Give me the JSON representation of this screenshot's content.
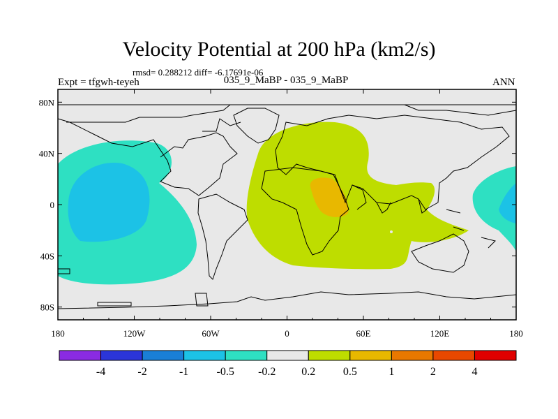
{
  "chart_data": {
    "type": "contour-map",
    "title": "Velocity Potential at 200 hPa (km2/s)",
    "stats": "rmsd= 0.288212 diff= -6.17691e-06",
    "experiment": "Expt = tfgwh-teyeh",
    "cases": "035_9_MaBP - 035_9_MaBP",
    "season": "ANN",
    "xlabel": "",
    "ylabel": "",
    "xlim": [
      -180,
      180
    ],
    "ylim": [
      -90,
      90
    ],
    "x_ticks": [
      -180,
      -120,
      -60,
      0,
      60,
      120,
      180
    ],
    "x_tick_labels": [
      "180",
      "120W",
      "60W",
      "0",
      "60E",
      "120E",
      "180"
    ],
    "y_ticks": [
      80,
      40,
      0,
      -40,
      -80
    ],
    "y_tick_labels": [
      "80N",
      "40N",
      "0",
      "40S",
      "80S"
    ],
    "colorbar": {
      "levels": [
        -4,
        -2,
        -1,
        -0.5,
        -0.2,
        0.2,
        0.5,
        1,
        2,
        4
      ],
      "labels": [
        "-4",
        "-2",
        "-1",
        "-0.5",
        "-0.2",
        "0.2",
        "0.5",
        "1",
        "2",
        "4"
      ],
      "colors": [
        "#8a2be2",
        "#2b35d9",
        "#1a7fd6",
        "#1cc2e6",
        "#2ee0c2",
        "#e8e8e8",
        "#bedd00",
        "#e8b800",
        "#e87800",
        "#e84800",
        "#e00000"
      ]
    },
    "regions": [
      {
        "name": "Pacific negative anomaly",
        "range": "-0.5 to -0.2",
        "color": "#2ee0c2"
      },
      {
        "name": "Pacific minimum",
        "range": "-1 to -0.5",
        "color": "#1cc2e6"
      },
      {
        "name": "Africa/Indian Ocean positive anomaly",
        "range": "0.2 to 0.5",
        "color": "#bedd00"
      },
      {
        "name": "East Africa maximum",
        "range": "0.5 to 1",
        "color": "#e8b800"
      },
      {
        "name": "West Pacific negative anomaly",
        "range": "-0.5 to -0.2",
        "color": "#2ee0c2"
      },
      {
        "name": "West Pacific minimum",
        "range": "-1 to -0.5",
        "color": "#1cc2e6"
      }
    ]
  }
}
